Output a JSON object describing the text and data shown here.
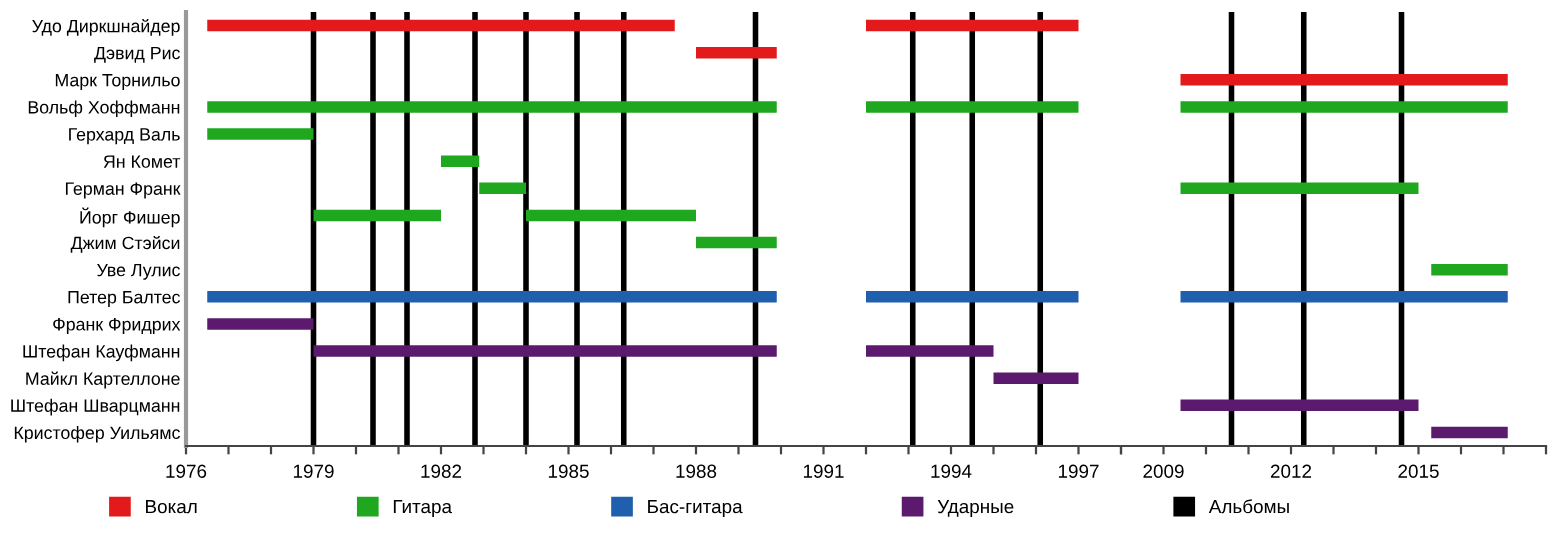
{
  "chart_data": [
    {
      "type": "bar",
      "orientation": "horizontal",
      "categories": [
        "Удо Диркшнайдер",
        "Дэвид Рис",
        "Марк Торнильо",
        "Вольф Хоффманн",
        "Герхард Валь",
        "Ян Комет",
        "Герман Франк",
        "Йорг Фишер",
        "Джим Стэйси",
        "Уве Лулис",
        "Петер Балтес",
        "Франк Фридрих",
        "Штефан Кауфманн",
        "Майкл Картеллоне",
        "Штефан Шварцманн",
        "Кристофер Уильямс"
      ],
      "series": [
        {
          "name": "Вокал",
          "color": "#e31a1c",
          "base": [
            1976.5,
            1988,
            null,
            null,
            null,
            null,
            null,
            null,
            null,
            null,
            null,
            null,
            null,
            null,
            null,
            null
          ],
          "values": [
            11.0,
            1.9,
            null,
            null,
            null,
            null,
            null,
            null,
            null,
            null,
            null,
            null,
            null,
            null,
            null,
            null
          ]
        },
        {
          "color": "#e31a1c",
          "base": [
            1992,
            null,
            null,
            null,
            null,
            null,
            null,
            null,
            null,
            null,
            null,
            null,
            null,
            null,
            null,
            null
          ],
          "values": [
            5,
            null,
            null,
            null,
            null,
            null,
            null,
            null,
            null,
            null,
            null,
            null,
            null,
            null,
            null,
            null
          ]
        },
        {
          "name": "Гитара",
          "color": "#1fa81f",
          "base": [
            null,
            null,
            null,
            1976.5,
            1976.5,
            1982,
            1982.9,
            1979,
            1988,
            null,
            null,
            null,
            null,
            null,
            null,
            null
          ],
          "values": [
            null,
            null,
            null,
            13.4,
            2.5,
            0.9,
            1.1,
            3,
            1.9,
            null,
            null,
            null,
            null,
            null,
            null,
            null
          ]
        },
        {
          "color": "#1fa81f",
          "base": [
            null,
            null,
            null,
            1992,
            null,
            null,
            null,
            1984,
            null,
            null,
            null,
            null,
            null,
            null,
            null,
            null
          ],
          "values": [
            null,
            null,
            null,
            5,
            null,
            null,
            null,
            4,
            null,
            null,
            null,
            null,
            null,
            null,
            null,
            null
          ]
        },
        {
          "name": "Бас-гитара",
          "color": "#1f5fad",
          "base": [
            null,
            null,
            null,
            null,
            null,
            null,
            null,
            null,
            null,
            null,
            1976.5,
            null,
            null,
            null,
            null,
            null
          ],
          "values": [
            null,
            null,
            null,
            null,
            null,
            null,
            null,
            null,
            null,
            null,
            13.4,
            null,
            null,
            null,
            null,
            null
          ]
        },
        {
          "color": "#1f5fad",
          "base": [
            null,
            null,
            null,
            null,
            null,
            null,
            null,
            null,
            null,
            null,
            1992,
            null,
            null,
            null,
            null,
            null
          ],
          "values": [
            null,
            null,
            null,
            null,
            null,
            null,
            null,
            null,
            null,
            null,
            5,
            null,
            null,
            null,
            null,
            null
          ]
        },
        {
          "name": "Ударные",
          "color": "#5c1a6e",
          "base": [
            null,
            null,
            null,
            null,
            null,
            null,
            null,
            null,
            null,
            null,
            null,
            1976.5,
            1979,
            1995,
            null,
            null
          ],
          "values": [
            null,
            null,
            null,
            null,
            null,
            null,
            null,
            null,
            null,
            null,
            null,
            2.5,
            10.9,
            2,
            null,
            null
          ]
        },
        {
          "color": "#5c1a6e",
          "base": [
            null,
            null,
            null,
            null,
            null,
            null,
            null,
            null,
            null,
            null,
            null,
            null,
            1992,
            null,
            null,
            null
          ],
          "values": [
            null,
            null,
            null,
            null,
            null,
            null,
            null,
            null,
            null,
            null,
            null,
            null,
            3,
            null,
            null,
            null
          ]
        }
      ],
      "ref_lines": [
        {
          "axis": "x",
          "value": 1979,
          "label": "Альбомы",
          "color": "#000000"
        },
        {
          "axis": "x",
          "value": 1980.4,
          "color": "#000000"
        },
        {
          "axis": "x",
          "value": 1981.2,
          "color": "#000000"
        },
        {
          "axis": "x",
          "value": 1982.8,
          "color": "#000000"
        },
        {
          "axis": "x",
          "value": 1984,
          "color": "#000000"
        },
        {
          "axis": "x",
          "value": 1985.2,
          "color": "#000000"
        },
        {
          "axis": "x",
          "value": 1986.3,
          "color": "#000000"
        },
        {
          "axis": "x",
          "value": 1989.4,
          "color": "#000000"
        },
        {
          "axis": "x",
          "value": 1993.1,
          "color": "#000000"
        },
        {
          "axis": "x",
          "value": 1994.5,
          "color": "#000000"
        },
        {
          "axis": "x",
          "value": 1996.1,
          "color": "#000000"
        }
      ],
      "xlim": [
        1976,
        1998
      ],
      "xticks": [
        1976,
        {
          "value": 1977,
          "label": null
        },
        {
          "value": 1978,
          "label": null
        },
        1979,
        {
          "value": 1980,
          "label": null
        },
        {
          "value": 1981,
          "label": null
        },
        1982,
        {
          "value": 1983,
          "label": null
        },
        {
          "value": 1984,
          "label": null
        },
        1985,
        {
          "value": 1986,
          "label": null
        },
        {
          "value": 1987,
          "label": null
        },
        1988,
        {
          "value": 1989,
          "label": null
        },
        {
          "value": 1990,
          "label": null
        },
        1991,
        {
          "value": 1992,
          "label": null
        },
        {
          "value": 1993,
          "label": null
        },
        1994,
        {
          "value": 1995,
          "label": null
        },
        {
          "value": 1996,
          "label": null
        },
        1997,
        {
          "value": 1998,
          "label": null
        }
      ],
      "legend": "bottom"
    },
    {
      "type": "bar",
      "orientation": "horizontal",
      "categories": [
        null,
        null,
        null,
        null,
        null,
        null,
        null,
        null,
        null,
        null,
        null,
        null,
        null,
        null,
        null,
        null
      ],
      "series": [
        {
          "color": "#e31a1c",
          "base": [
            null,
            null,
            2009.4,
            null,
            null,
            null,
            null,
            null,
            null,
            null,
            null,
            null,
            null,
            null,
            null,
            null
          ],
          "values": [
            null,
            null,
            7.7,
            null,
            null,
            null,
            null,
            null,
            null,
            null,
            null,
            null,
            null,
            null,
            null,
            null
          ]
        },
        {
          "color": "#1fa81f",
          "base": [
            null,
            null,
            null,
            2009.4,
            null,
            null,
            2009.4,
            null,
            null,
            2015.3,
            null,
            null,
            null,
            null,
            null,
            null
          ],
          "values": [
            null,
            null,
            null,
            7.7,
            null,
            null,
            5.6,
            null,
            null,
            1.8,
            null,
            null,
            null,
            null,
            null,
            null
          ]
        },
        {
          "color": "#1f5fad",
          "base": [
            null,
            null,
            null,
            null,
            null,
            null,
            null,
            null,
            null,
            null,
            2009.4,
            null,
            null,
            null,
            null,
            null
          ],
          "values": [
            null,
            null,
            null,
            null,
            null,
            null,
            null,
            null,
            null,
            null,
            7.7,
            null,
            null,
            null,
            null,
            null
          ]
        },
        {
          "color": "#5c1a6e",
          "base": [
            null,
            null,
            null,
            null,
            null,
            null,
            null,
            null,
            null,
            null,
            null,
            null,
            null,
            null,
            2009.4,
            2015.3
          ],
          "values": [
            null,
            null,
            null,
            null,
            null,
            null,
            null,
            null,
            null,
            null,
            null,
            null,
            null,
            null,
            5.6,
            1.8
          ]
        }
      ],
      "ref_lines": [
        {
          "axis": "x",
          "value": 2010.6,
          "color": "#000000"
        },
        {
          "axis": "x",
          "value": 2012.3,
          "color": "#000000"
        },
        {
          "axis": "x",
          "value": 2014.6,
          "color": "#000000"
        }
      ],
      "xlim": [
        2008,
        2018
      ],
      "xticks": [
        {
          "value": 2008,
          "label": null
        },
        2009,
        {
          "value": 2010,
          "label": null
        },
        {
          "value": 2011,
          "label": null
        },
        2012,
        {
          "value": 2013,
          "label": null
        },
        {
          "value": 2014,
          "label": null
        },
        2015,
        {
          "value": 2016,
          "label": null
        },
        {
          "value": 2017,
          "label": null
        },
        {
          "value": 2018,
          "label": null
        }
      ],
      "tick_labels": "x"
    }
  ]
}
